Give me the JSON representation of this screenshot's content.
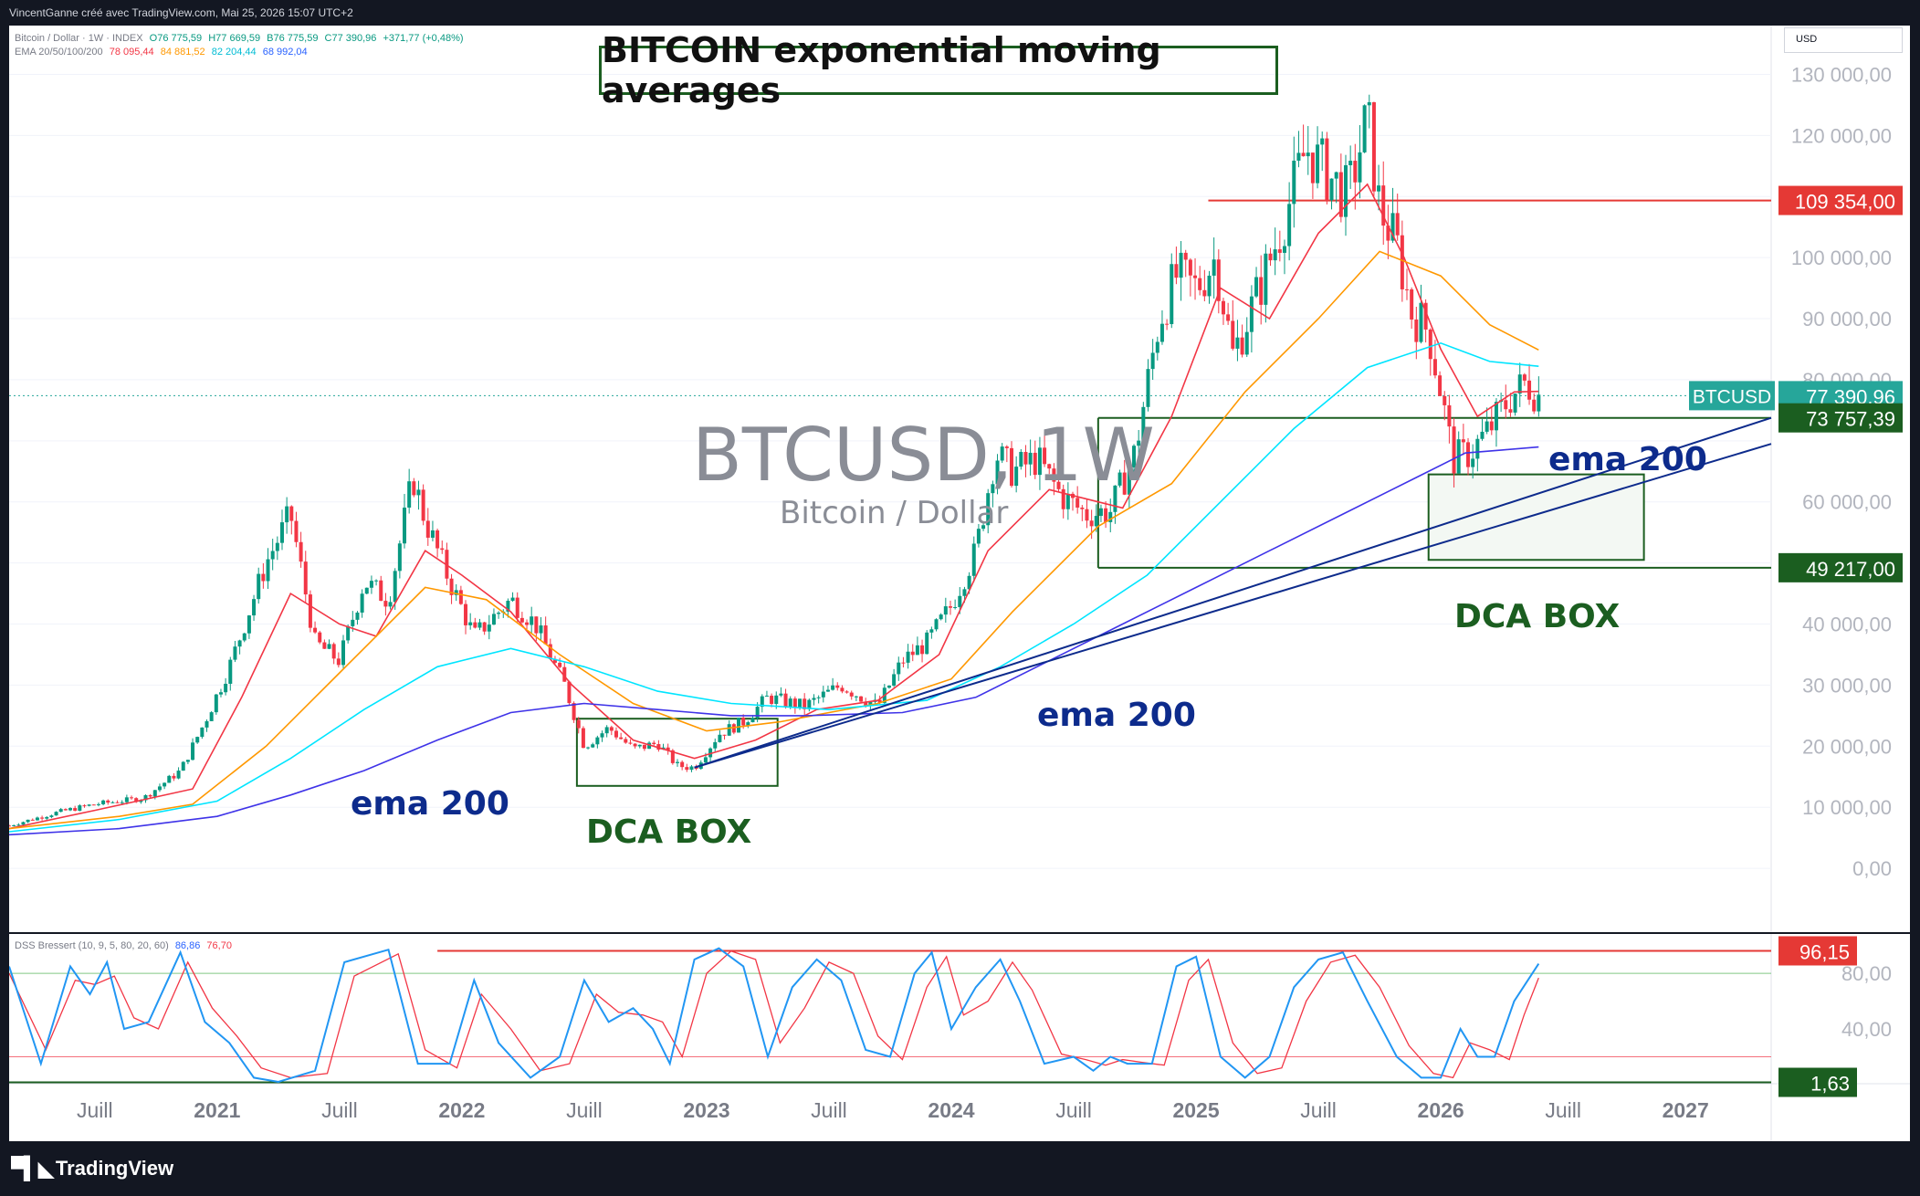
{
  "topbar": {
    "text": "VincentGanne créé avec TradingView.com, Mai 25, 2026 15:07 UTC+2"
  },
  "legend": {
    "symbol_line": "Bitcoin / Dollar · 1W · INDEX",
    "ohlc": [
      "O76 775,59",
      "H77 669,59",
      "B76 775,59",
      "C77 390,96",
      "+371,77 (+0,48%)"
    ],
    "ema_name": "EMA 20/50/100/200",
    "ema_values": [
      {
        "text": "78 095,44",
        "color": "#f23645"
      },
      {
        "text": "84 881,52",
        "color": "#ff9800"
      },
      {
        "text": "82 204,44",
        "color": "#00e5ff"
      },
      {
        "text": "68 992,04",
        "color": "#2962ff"
      }
    ],
    "osc_name": "DSS Bressert (10, 9, 5, 80, 20, 60)",
    "osc_values": [
      {
        "text": "86,86",
        "color": "#2962ff"
      },
      {
        "text": "76,70",
        "color": "#f23645"
      }
    ]
  },
  "title": "BITCOIN exponential moving averages",
  "currency": "USD",
  "watermark": {
    "symbol": "BTCUSD, 1W",
    "description": "Bitcoin / Dollar"
  },
  "colors": {
    "up": "#089981",
    "down": "#f23645",
    "ema20": "#f23645",
    "ema50": "#ff9800",
    "ema100": "#00e5ff",
    "ema200": "#3f33e8",
    "annot_green": "#1b5e20",
    "annot_navy": "#0d2b8c",
    "osc_k": "#2196f3",
    "osc_d": "#f23645"
  },
  "annotations": {
    "ema200_label": "ema 200",
    "dca_box_label": "DCA BOX"
  },
  "price_badges": {
    "btcusd_symbol": "BTCUSD",
    "btcusd": "77 390,96",
    "resistance": "109 354,00",
    "support_high": "73 757,39",
    "support_low": "49 217,00",
    "osc_high": "96,15",
    "osc_low": "1,63"
  },
  "footer": {
    "brand": "TradingView"
  },
  "chart_data": [
    {
      "type": "line",
      "title": "BTCUSD, 1W",
      "subtitle": "Bitcoin / Dollar",
      "ylim": [
        -10000,
        135000
      ],
      "y_ticks": [
        0,
        10000,
        20000,
        30000,
        40000,
        50000,
        60000,
        70000,
        80000,
        90000,
        100000,
        110000,
        120000,
        130000
      ],
      "y_tick_labels": [
        "0,00",
        "10 000,00",
        "20 000,00",
        "30 000,00",
        "40 000,00",
        "",
        "60 000,00",
        "",
        "80 000,00",
        "90 000,00",
        "100 000,00",
        "",
        "120 000,00",
        "130 000,00"
      ],
      "x_ticks": [
        "Juill",
        "2021",
        "Juill",
        "2022",
        "Juill",
        "2023",
        "Juill",
        "2024",
        "Juill",
        "2025",
        "Juill",
        "2026",
        "Juill",
        "2027"
      ],
      "x_tick_years": [
        2020.5,
        2021.0,
        2021.5,
        2022.0,
        2022.5,
        2023.0,
        2023.5,
        2024.0,
        2024.5,
        2025.0,
        2025.5,
        2026.0,
        2026.5,
        2027.0
      ],
      "x_range_years": [
        2020.15,
        2027.35
      ],
      "series": [
        {
          "name": "Bitcoin / Dollar",
          "x": [
            2020.15,
            2020.35,
            2020.5,
            2020.7,
            2020.85,
            2020.95,
            2021.05,
            2021.2,
            2021.3,
            2021.4,
            2021.5,
            2021.6,
            2021.7,
            2021.8,
            2021.85,
            2021.95,
            2022.05,
            2022.2,
            2022.3,
            2022.42,
            2022.5,
            2022.6,
            2022.7,
            2022.8,
            2022.88,
            2022.95,
            2023.05,
            2023.15,
            2023.25,
            2023.4,
            2023.55,
            2023.7,
            2023.8,
            2023.9,
            2024.0,
            2024.1,
            2024.18,
            2024.25,
            2024.35,
            2024.45,
            2024.55,
            2024.65,
            2024.75,
            2024.85,
            2024.92,
            2025.0,
            2025.08,
            2025.15,
            2025.25,
            2025.35,
            2025.45,
            2025.55,
            2025.62,
            2025.7,
            2025.75,
            2025.82,
            2025.88,
            2025.95,
            2026.0,
            2026.05,
            2026.12,
            2026.2,
            2026.28,
            2026.35,
            2026.4
          ],
          "values": [
            7000,
            9200,
            10500,
            11500,
            16000,
            24000,
            33000,
            50000,
            58000,
            37000,
            34000,
            47000,
            44000,
            64000,
            57000,
            47000,
            38000,
            44000,
            40000,
            30000,
            20000,
            23000,
            19500,
            20500,
            16800,
            16500,
            22000,
            24000,
            28000,
            26500,
            30000,
            26500,
            34000,
            37000,
            43000,
            52000,
            68000,
            65000,
            67000,
            61000,
            58000,
            58500,
            68000,
            90000,
            97000,
            95000,
            100000,
            84000,
            94000,
            105000,
            118000,
            113000,
            110000,
            123000,
            108000,
            102000,
            91000,
            88000,
            78000,
            67000,
            68000,
            72000,
            77000,
            79500,
            77390.96
          ]
        },
        {
          "name": "EMA 20",
          "x": [
            2020.15,
            2020.5,
            2020.9,
            2021.1,
            2021.3,
            2021.5,
            2021.65,
            2021.85,
            2022.0,
            2022.2,
            2022.45,
            2022.7,
            2022.95,
            2023.2,
            2023.45,
            2023.7,
            2023.95,
            2024.15,
            2024.4,
            2024.7,
            2024.9,
            2025.1,
            2025.3,
            2025.5,
            2025.7,
            2025.85,
            2026.0,
            2026.15,
            2026.3,
            2026.4
          ],
          "values": [
            6500,
            9500,
            13000,
            28000,
            45000,
            40000,
            38000,
            52000,
            48000,
            42000,
            30000,
            21000,
            18000,
            21000,
            26000,
            27500,
            35000,
            52000,
            62000,
            59000,
            74000,
            95000,
            90000,
            104000,
            112000,
            100000,
            85000,
            74000,
            78000,
            78095.44
          ]
        },
        {
          "name": "EMA 50",
          "x": [
            2020.15,
            2020.6,
            2020.9,
            2021.2,
            2021.5,
            2021.85,
            2022.1,
            2022.4,
            2022.7,
            2023.0,
            2023.3,
            2023.7,
            2024.0,
            2024.25,
            2024.6,
            2024.9,
            2025.2,
            2025.5,
            2025.75,
            2026.0,
            2026.2,
            2026.4
          ],
          "values": [
            6500,
            8500,
            10500,
            20000,
            32000,
            46000,
            44000,
            35000,
            27000,
            22500,
            24000,
            27000,
            31000,
            42000,
            56000,
            63000,
            78000,
            90000,
            101000,
            97000,
            89000,
            84881.52
          ]
        },
        {
          "name": "EMA 100",
          "x": [
            2020.15,
            2020.6,
            2021.0,
            2021.3,
            2021.6,
            2021.9,
            2022.2,
            2022.5,
            2022.8,
            2023.1,
            2023.5,
            2023.9,
            2024.2,
            2024.5,
            2024.8,
            2025.1,
            2025.4,
            2025.7,
            2026.0,
            2026.2,
            2026.4
          ],
          "values": [
            6000,
            8000,
            11000,
            18000,
            26000,
            33000,
            36000,
            33000,
            29000,
            27000,
            26000,
            27500,
            33000,
            40000,
            48000,
            60000,
            72000,
            82000,
            86000,
            83000,
            82204.44
          ]
        },
        {
          "name": "EMA 200",
          "x": [
            2020.15,
            2020.6,
            2021.0,
            2021.3,
            2021.6,
            2021.9,
            2022.2,
            2022.5,
            2022.8,
            2023.1,
            2023.4,
            2023.8,
            2024.1,
            2024.4,
            2024.7,
            2025.0,
            2025.3,
            2025.6,
            2025.9,
            2026.1,
            2026.25,
            2026.4
          ],
          "values": [
            5500,
            6500,
            8500,
            12000,
            16000,
            21000,
            25500,
            27000,
            26000,
            25000,
            25000,
            25500,
            28000,
            34000,
            40000,
            46000,
            52000,
            58000,
            64000,
            68000,
            68500,
            68992.04
          ]
        }
      ]
    },
    {
      "type": "line",
      "title": "DSS Bressert (10, 9, 5, 80, 20, 60)",
      "ylim": [
        0,
        105
      ],
      "y_ticks": [
        40,
        80
      ],
      "y_tick_labels": [
        "40,00",
        "80,00"
      ],
      "levels": [
        20,
        80
      ],
      "series": [
        {
          "name": "DSS",
          "x": [
            2020.15,
            2020.28,
            2020.4,
            2020.48,
            2020.55,
            2020.62,
            2020.72,
            2020.85,
            2020.95,
            2021.05,
            2021.15,
            2021.25,
            2021.4,
            2021.52,
            2021.7,
            2021.82,
            2021.95,
            2022.05,
            2022.15,
            2022.28,
            2022.4,
            2022.5,
            2022.6,
            2022.7,
            2022.78,
            2022.85,
            2022.95,
            2023.05,
            2023.15,
            2023.25,
            2023.35,
            2023.45,
            2023.55,
            2023.65,
            2023.75,
            2023.85,
            2023.92,
            2024.0,
            2024.1,
            2024.2,
            2024.28,
            2024.38,
            2024.5,
            2024.58,
            2024.65,
            2024.72,
            2024.82,
            2024.92,
            2025.0,
            2025.1,
            2025.2,
            2025.3,
            2025.4,
            2025.5,
            2025.6,
            2025.7,
            2025.82,
            2025.92,
            2026.0,
            2026.08,
            2026.15,
            2026.22,
            2026.3,
            2026.4
          ],
          "values": [
            85,
            15,
            85,
            65,
            88,
            40,
            45,
            95,
            45,
            30,
            5,
            2,
            10,
            88,
            97,
            15,
            15,
            75,
            30,
            5,
            20,
            75,
            45,
            55,
            40,
            15,
            90,
            98,
            85,
            20,
            70,
            90,
            75,
            25,
            20,
            80,
            95,
            40,
            70,
            90,
            60,
            15,
            20,
            10,
            20,
            15,
            15,
            85,
            92,
            20,
            5,
            20,
            70,
            90,
            95,
            60,
            20,
            5,
            5,
            40,
            20,
            20,
            60,
            86.86
          ]
        },
        {
          "name": "Signal",
          "x": [
            2020.15,
            2020.3,
            2020.42,
            2020.5,
            2020.58,
            2020.66,
            2020.76,
            2020.88,
            2020.98,
            2021.08,
            2021.18,
            2021.3,
            2021.45,
            2021.56,
            2021.74,
            2021.85,
            2021.98,
            2022.08,
            2022.2,
            2022.32,
            2022.44,
            2022.55,
            2022.64,
            2022.74,
            2022.82,
            2022.9,
            2023.0,
            2023.1,
            2023.2,
            2023.3,
            2023.4,
            2023.5,
            2023.6,
            2023.7,
            2023.8,
            2023.9,
            2023.98,
            2024.05,
            2024.15,
            2024.25,
            2024.33,
            2024.45,
            2024.55,
            2024.63,
            2024.7,
            2024.78,
            2024.87,
            2024.97,
            2025.05,
            2025.15,
            2025.25,
            2025.35,
            2025.45,
            2025.55,
            2025.65,
            2025.75,
            2025.87,
            2025.97,
            2026.05,
            2026.12,
            2026.2,
            2026.28,
            2026.34,
            2026.4
          ],
          "values": [
            80,
            25,
            75,
            72,
            78,
            48,
            40,
            88,
            55,
            35,
            12,
            5,
            8,
            78,
            94,
            25,
            12,
            65,
            40,
            10,
            15,
            65,
            52,
            50,
            45,
            20,
            80,
            96,
            90,
            30,
            55,
            88,
            80,
            35,
            18,
            70,
            92,
            50,
            60,
            88,
            68,
            22,
            18,
            14,
            18,
            16,
            14,
            75,
            90,
            30,
            8,
            12,
            60,
            88,
            93,
            70,
            28,
            8,
            5,
            30,
            25,
            18,
            50,
            76.7
          ]
        }
      ]
    }
  ]
}
